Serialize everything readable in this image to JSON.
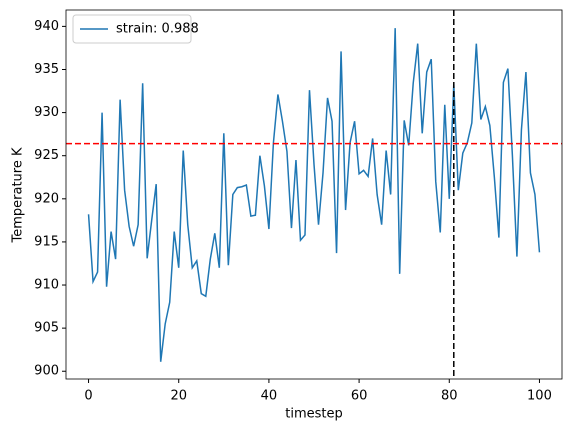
{
  "chart_data": {
    "type": "line",
    "xlabel": "timestep",
    "ylabel": "Temperature K",
    "x": [
      0,
      1,
      2,
      3,
      4,
      5,
      6,
      7,
      8,
      9,
      10,
      11,
      12,
      13,
      14,
      15,
      16,
      17,
      18,
      19,
      20,
      21,
      22,
      23,
      24,
      25,
      26,
      27,
      28,
      29,
      30,
      31,
      32,
      33,
      34,
      35,
      36,
      37,
      38,
      39,
      40,
      41,
      42,
      43,
      44,
      45,
      46,
      47,
      48,
      49,
      50,
      51,
      52,
      53,
      54,
      55,
      56,
      57,
      58,
      59,
      60,
      61,
      62,
      63,
      64,
      65,
      66,
      67,
      68,
      69,
      70,
      71,
      72,
      73,
      74,
      75,
      76,
      77,
      78,
      79,
      80,
      81,
      82,
      83,
      84,
      85,
      86,
      87,
      88,
      89,
      90,
      91,
      92,
      93,
      94,
      95,
      96,
      97,
      98,
      99,
      100
    ],
    "series": [
      {
        "name": "strain: 0.988",
        "color": "#1f77b4",
        "values": [
          918.2,
          910.4,
          911.5,
          930.0,
          909.8,
          916.2,
          913.0,
          931.5,
          921.0,
          916.8,
          914.5,
          917.0,
          933.4,
          913.1,
          917.5,
          921.7,
          901.1,
          905.5,
          908.0,
          916.2,
          912.0,
          925.6,
          917.0,
          912.0,
          912.8,
          909.0,
          908.7,
          913.0,
          916.0,
          912.0,
          927.6,
          912.3,
          920.5,
          921.3,
          921.4,
          921.6,
          918.0,
          918.1,
          925.0,
          921.5,
          916.5,
          926.5,
          932.1,
          929.0,
          925.5,
          916.6,
          924.5,
          915.2,
          915.8,
          932.6,
          924.0,
          917.0,
          923.0,
          931.7,
          929.0,
          913.7,
          937.1,
          918.7,
          926.5,
          929.0,
          922.9,
          923.3,
          922.6,
          927.0,
          920.5,
          917.0,
          925.6,
          920.5,
          939.8,
          911.3,
          929.1,
          926.2,
          933.4,
          938.0,
          927.6,
          934.7,
          936.2,
          922.0,
          916.1,
          930.9,
          920.0,
          933.3,
          921.0,
          925.3,
          926.5,
          928.8,
          938.0,
          929.2,
          930.7,
          928.5,
          922.5,
          915.5,
          933.5,
          935.1,
          925.0,
          913.3,
          928.0,
          934.7,
          923.0,
          920.5,
          913.8
        ]
      }
    ],
    "hlines": [
      {
        "value": 926.4,
        "color": "#ff0000"
      }
    ],
    "vlines": [
      {
        "value": 81,
        "color": "#000000"
      }
    ],
    "xlim": [
      -5,
      105
    ],
    "xticks": [
      0,
      20,
      40,
      60,
      80,
      100
    ],
    "ylim": [
      899.1,
      941.9
    ],
    "yticks": [
      900,
      905,
      910,
      915,
      920,
      925,
      930,
      935,
      940
    ],
    "legend": "upper-left",
    "grid": false
  }
}
